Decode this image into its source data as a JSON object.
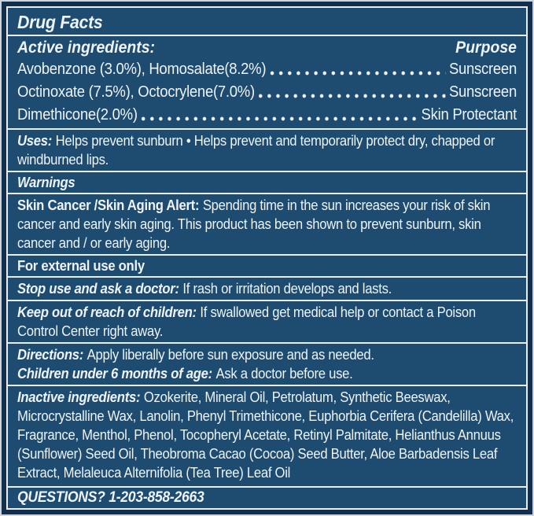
{
  "colors": {
    "panel_background": "#1e4b70",
    "outer_border": "#142f4b",
    "divider_line": "#e9eef4",
    "text": "#eef3f8",
    "page_edge": "#cdd4da"
  },
  "title": "Drug Facts",
  "active": {
    "header": "Active ingredients:",
    "purpose_header": "Purpose",
    "rows": [
      {
        "ingredient": "Avobenzone (3.0%), Homosalate(8.2%)",
        "purpose": "Sunscreen"
      },
      {
        "ingredient": "Octinoxate (7.5%), Octocrylene(7.0%)",
        "purpose": "Sunscreen"
      },
      {
        "ingredient": "Dimethicone(2.0%)",
        "purpose": "Skin Protectant"
      }
    ]
  },
  "uses": {
    "label": "Uses:",
    "text": "Helps prevent sunburn • Helps prevent and temporarily protect dry, chapped or windburned lips."
  },
  "warnings": {
    "header": "Warnings"
  },
  "alert": {
    "label": "Skin Cancer /Skin Aging Alert:",
    "text": "Spending time in the sun increases your risk of skin cancer and early skin aging. This product has been shown to prevent sunburn, skin cancer and / or early aging."
  },
  "external": {
    "text": "For external use only"
  },
  "stop_use": {
    "label": "Stop use and ask a doctor:",
    "text": "If rash or irritation develops and lasts."
  },
  "keep_out": {
    "label": "Keep out of reach of children:",
    "text": "If swallowed get medical help or contact a Poison Control Center right away."
  },
  "directions": {
    "label": "Directions:",
    "text": "Apply liberally before sun exposure and as needed."
  },
  "children": {
    "label": "Children under 6 months of age:",
    "text": "Ask a doctor before use."
  },
  "inactive": {
    "label": "Inactive ingredients:",
    "text": "Ozokerite, Mineral Oil, Petrolatum, Synthetic Beeswax, Microcrystalline Wax, Lanolin, Phenyl Trimethicone, Euphorbia Cerifera (Candelilla) Wax, Fragrance, Menthol, Phenol, Tocopheryl Acetate, Retinyl Palmitate, Helianthus Annuus (Sunflower) Seed Oil, Theobroma Cacao (Cocoa) Seed Butter, Aloe Barbadensis Leaf Extract, Melaleuca Alternifolia (Tea Tree) Leaf Oil"
  },
  "questions": {
    "label": "QUESTIONS?",
    "phone": "1-203-858-2663"
  }
}
